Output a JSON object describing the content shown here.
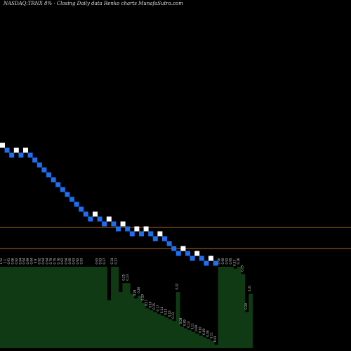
{
  "header": {
    "text": "NASDAQ:TRNX  8% ·  Closing Daily data  Renko  charts MunafaSutra.com"
  },
  "colors": {
    "background": "#000000",
    "brick_up": "#ffffff",
    "brick_down": "#1e6ff0",
    "support_line": "#b5651d",
    "volume_fill": "#0f3a14",
    "label": "#d8d8d8"
  },
  "chart_data": {
    "type": "renko",
    "brick_directions": [
      "up",
      "down",
      "down",
      "up",
      "down",
      "up",
      "down",
      "down",
      "down",
      "down",
      "down",
      "down",
      "down",
      "down",
      "down",
      "down",
      "down",
      "down",
      "down",
      "down",
      "up",
      "down",
      "down",
      "up",
      "down",
      "down",
      "up",
      "down",
      "down",
      "up",
      "down",
      "up",
      "down",
      "down",
      "up",
      "down",
      "down",
      "down",
      "down",
      "up",
      "down",
      "down",
      "up",
      "down",
      "down",
      "up",
      "down"
    ],
    "reference_lines": [
      {
        "name": "upper",
        "value": 0.58
      },
      {
        "name": "lower",
        "value": 0.55
      }
    ],
    "volume_labels": [
      "1.52",
      "1.1",
      "0.91",
      "0.96",
      "0.92",
      "0.94",
      "0.94",
      "0.99",
      "0.94",
      "0.9",
      "0.92",
      "0.94",
      "0.94",
      "0.79",
      "0.75",
      "0.76",
      "0.93",
      "0.94",
      "0.95",
      "0.93",
      "0.92",
      "0.93",
      "",
      "",
      "",
      "0.93",
      "0.93",
      "0.27",
      "",
      "0.24",
      "0.21",
      "",
      "0.25",
      "0.23",
      "",
      "0.28",
      "0.26",
      "0.19",
      "0.17",
      "0.16",
      "0.15",
      "0.17",
      "0.14",
      "0.13",
      "0.15",
      "0.13",
      "0.32",
      "0.08",
      "0.09",
      "0.13",
      "0.11",
      "0.09",
      "0.10",
      "0.09",
      "0.09",
      "0.11",
      "0.01",
      "0.90",
      "0.90",
      "0.92",
      "0.95",
      "0.53",
      "0.26",
      "0.25",
      "0.29",
      "0.21"
    ],
    "volume_values": [
      0.9,
      0.9,
      0.9,
      0.9,
      0.9,
      0.9,
      0.9,
      0.9,
      0.9,
      0.9,
      0.9,
      0.9,
      0.9,
      0.9,
      0.9,
      0.9,
      0.9,
      0.9,
      0.9,
      0.9,
      0.9,
      0.9,
      0.9,
      0.9,
      0.9,
      0.9,
      0.9,
      0.9,
      0.53,
      0.9,
      0.9,
      0.62,
      0.72,
      0.72,
      0.6,
      0.55,
      0.58,
      0.5,
      0.44,
      0.42,
      0.4,
      0.38,
      0.36,
      0.34,
      0.32,
      0.3,
      0.62,
      0.24,
      0.22,
      0.2,
      0.18,
      0.16,
      0.14,
      0.12,
      0.1,
      0.08,
      0.04,
      0.9,
      0.9,
      0.9,
      0.9,
      0.88,
      0.9,
      0.82,
      0.4,
      0.6
    ]
  }
}
